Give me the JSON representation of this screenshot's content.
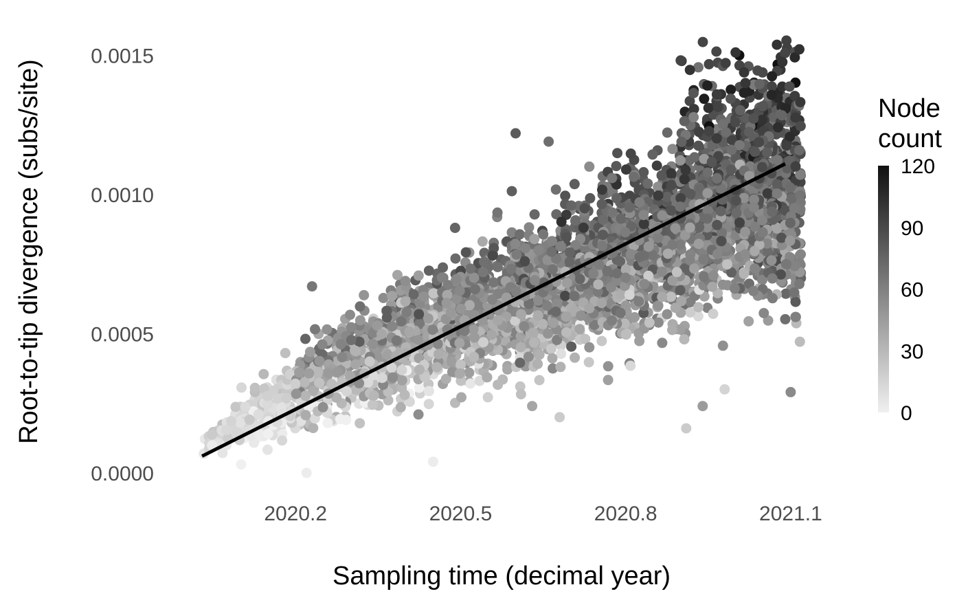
{
  "chart_data": {
    "type": "scatter",
    "xlabel": "Sampling time (decimal year)",
    "ylabel": "Root-to-tip divergence (subs/site)",
    "xlim": [
      2019.95,
      2021.18
    ],
    "ylim": [
      -3e-05,
      0.0016
    ],
    "x_ticks": [
      2020.2,
      2020.5,
      2020.8,
      2021.1
    ],
    "x_tick_labels": [
      "2020.2",
      "2020.5",
      "2020.8",
      "2021.1"
    ],
    "y_ticks": [
      0.0,
      0.0005,
      0.001,
      0.0015
    ],
    "y_tick_labels": [
      "0.0000",
      "0.0005",
      "0.0010",
      "0.0015"
    ],
    "grid": false,
    "color_legend": {
      "title_lines": [
        "Node",
        "count"
      ],
      "min": 0,
      "max": 120,
      "ticks": [
        0,
        30,
        60,
        90,
        120
      ],
      "tick_labels": [
        "0",
        "30",
        "60",
        "90",
        "120"
      ],
      "color_low": "#f0f0f0",
      "color_high": "#111111",
      "placement": "right"
    },
    "regression_line": {
      "x": [
        2020.03,
        2021.09
      ],
      "y": [
        6e-05,
        0.00111
      ],
      "color": "#000000"
    },
    "point_cloud": {
      "description_kind": "dense band of points",
      "n_points": 4200,
      "x_range": [
        2020.03,
        2021.12
      ],
      "band_center": [
        [
          2020.03,
          0.0001
        ],
        [
          2020.2,
          0.00028
        ],
        [
          2020.4,
          0.00048
        ],
        [
          2020.6,
          0.0006
        ],
        [
          2020.8,
          0.00078
        ],
        [
          2021.0,
          0.00095
        ],
        [
          2021.12,
          0.00098
        ]
      ],
      "band_halfwidth": [
        [
          2020.03,
          5e-05
        ],
        [
          2020.2,
          0.00012
        ],
        [
          2020.5,
          0.0002
        ],
        [
          2020.8,
          0.00025
        ],
        [
          2021.0,
          0.0003
        ],
        [
          2021.12,
          0.00035
        ]
      ],
      "outliers": [
        {
          "x": 2020.45,
          "y": 4e-05,
          "count": 2
        },
        {
          "x": 2020.22,
          "y": 0.0,
          "count": 2
        },
        {
          "x": 2020.23,
          "y": 0.00067,
          "count": 65
        },
        {
          "x": 2020.49,
          "y": 0.00088,
          "count": 75
        },
        {
          "x": 2020.6,
          "y": 0.00122,
          "count": 80
        },
        {
          "x": 2020.66,
          "y": 0.00119,
          "count": 70
        },
        {
          "x": 2020.91,
          "y": 0.00016,
          "count": 20
        },
        {
          "x": 2020.94,
          "y": 0.00024,
          "count": 45
        },
        {
          "x": 2020.98,
          "y": 0.0003,
          "count": 15
        },
        {
          "x": 2021.1,
          "y": 0.00029,
          "count": 55
        },
        {
          "x": 2020.68,
          "y": 0.0002,
          "count": 20
        },
        {
          "x": 2020.63,
          "y": 0.00024,
          "count": 40
        }
      ]
    }
  }
}
